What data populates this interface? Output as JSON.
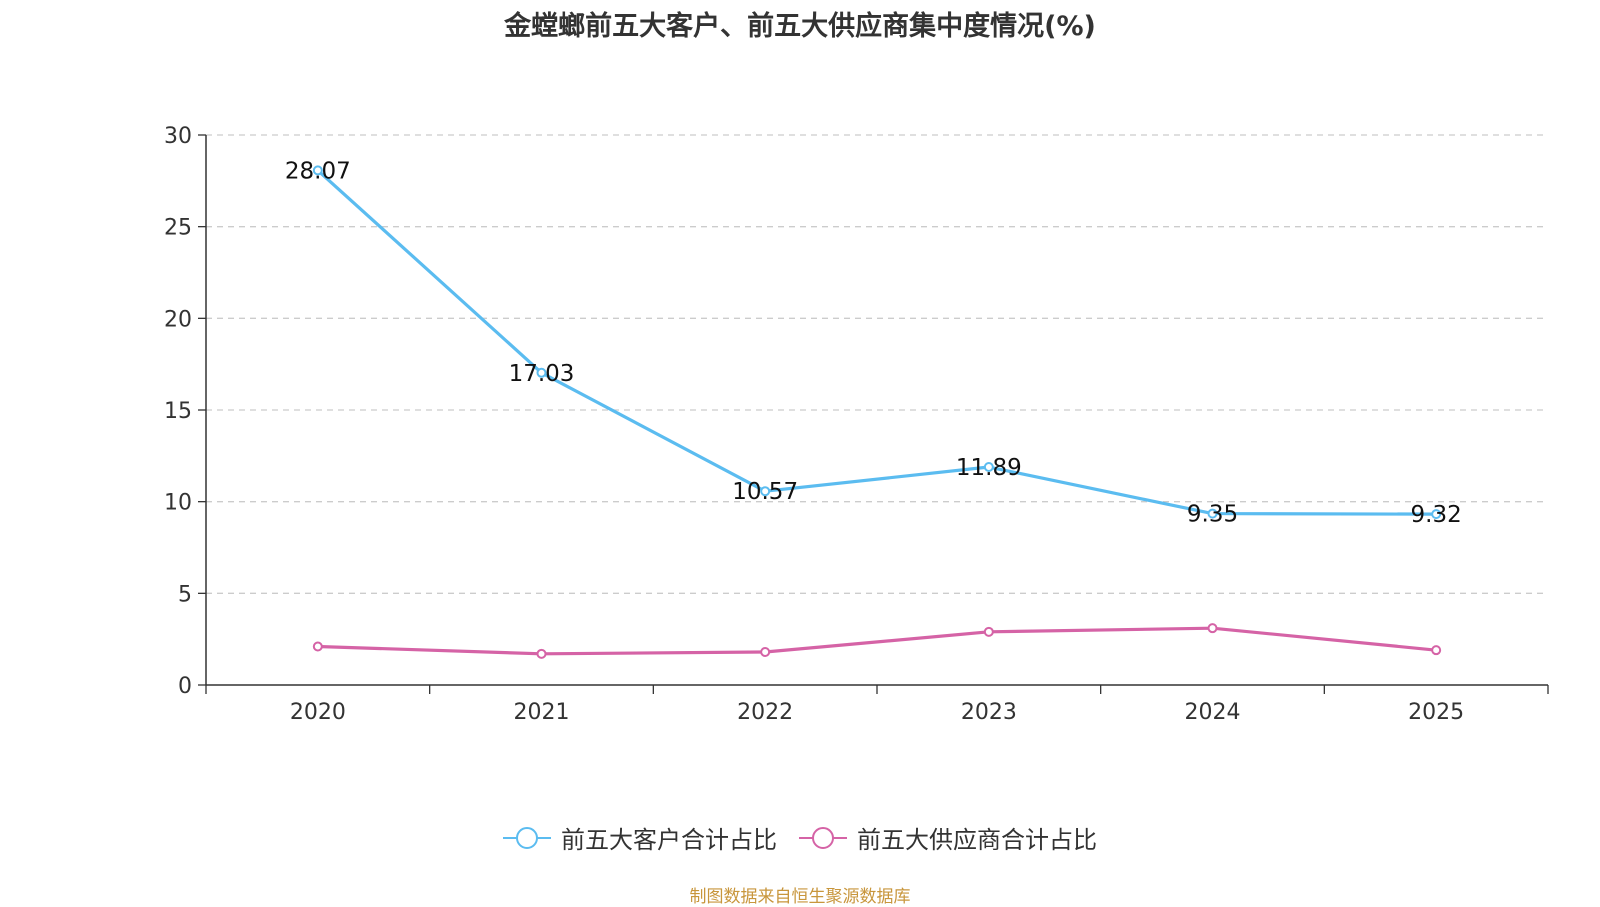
{
  "title": "金螳螂前五大客户、前五大供应商集中度情况(%)",
  "source": "制图数据来自恒生聚源数据库",
  "chart_data": {
    "type": "line",
    "title": "金螳螂前五大客户、前五大供应商集中度情况(%)",
    "categories": [
      "2020",
      "2021",
      "2022",
      "2023",
      "2024",
      "2025"
    ],
    "ylim": [
      0,
      30
    ],
    "yticks": [
      0,
      5,
      10,
      15,
      20,
      25,
      30
    ],
    "grid": true,
    "legend_position": "bottom",
    "series": [
      {
        "name": "前五大客户合计占比",
        "color": "#5bbcf0",
        "values": [
          28.07,
          17.03,
          10.57,
          11.89,
          9.35,
          9.32
        ],
        "labels": [
          "28.07",
          "17.03",
          "10.57",
          "11.89",
          "9.35",
          "9.32"
        ],
        "show_labels": true
      },
      {
        "name": "前五大供应商合计占比",
        "color": "#d563a6",
        "values": [
          2.1,
          1.7,
          1.8,
          2.9,
          3.1,
          1.9
        ],
        "labels": [],
        "show_labels": false
      }
    ]
  }
}
